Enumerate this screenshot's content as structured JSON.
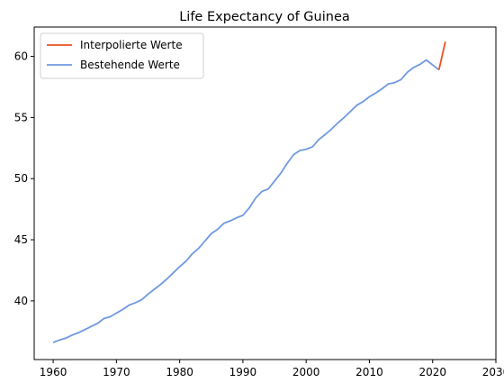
{
  "chart_data": {
    "type": "line",
    "title": "Life Expectancy of Guinea",
    "xlabel": "",
    "ylabel": "",
    "xlim": [
      1957,
      2030
    ],
    "ylim": [
      35.2,
      62.4
    ],
    "xticks": [
      1960,
      1970,
      1980,
      1990,
      2000,
      2010,
      2020,
      2030
    ],
    "yticks": [
      40,
      45,
      50,
      55,
      60
    ],
    "grid": false,
    "legend_position": "top-left",
    "series": [
      {
        "name": "Interpolierte Werte",
        "color": "#e8521e",
        "x": [
          2021,
          2022
        ],
        "y": [
          58.9,
          61.2
        ]
      },
      {
        "name": "Bestehende Werte",
        "color": "#6f99e0",
        "x": [
          1960,
          1961,
          1962,
          1963,
          1964,
          1965,
          1966,
          1967,
          1968,
          1969,
          1970,
          1971,
          1972,
          1973,
          1974,
          1975,
          1976,
          1977,
          1978,
          1979,
          1980,
          1981,
          1982,
          1983,
          1984,
          1985,
          1986,
          1987,
          1988,
          1989,
          1990,
          1991,
          1992,
          1993,
          1994,
          1995,
          1996,
          1997,
          1998,
          1999,
          2000,
          2001,
          2002,
          2003,
          2004,
          2005,
          2006,
          2007,
          2008,
          2009,
          2010,
          2011,
          2012,
          2013,
          2014,
          2015,
          2016,
          2017,
          2018,
          2019,
          2020,
          2021
        ],
        "y": [
          36.6,
          36.8,
          36.95,
          37.2,
          37.4,
          37.65,
          37.9,
          38.15,
          38.55,
          38.7,
          39.0,
          39.3,
          39.65,
          39.85,
          40.1,
          40.55,
          40.95,
          41.35,
          41.8,
          42.3,
          42.8,
          43.25,
          43.85,
          44.3,
          44.9,
          45.5,
          45.85,
          46.35,
          46.55,
          46.8,
          47.0,
          47.6,
          48.4,
          48.95,
          49.15,
          49.8,
          50.45,
          51.25,
          51.95,
          52.3,
          52.4,
          52.6,
          53.2,
          53.6,
          54.05,
          54.55,
          55.0,
          55.5,
          56.0,
          56.3,
          56.7,
          57.0,
          57.35,
          57.75,
          57.85,
          58.1,
          58.7,
          59.1,
          59.35,
          59.7,
          59.3,
          58.9
        ]
      }
    ]
  }
}
